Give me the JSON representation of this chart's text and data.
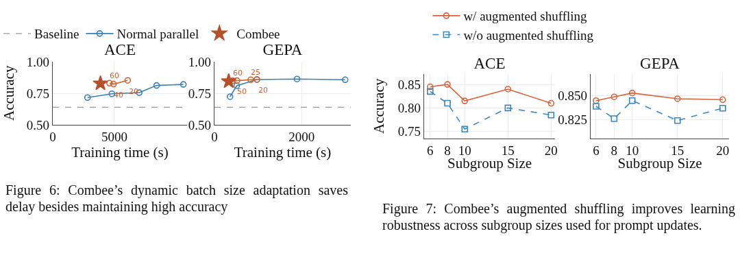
{
  "chart_data": [
    {
      "type": "line",
      "title": "ACE",
      "xlabel": "Training time (s)",
      "ylabel": "Accuracy",
      "xlim": [
        0,
        10900
      ],
      "xticks": [
        0,
        5000
      ],
      "ylim": [
        0.5,
        1.0
      ],
      "yticks": [
        {
          "value": 0.5,
          "label": "0.50"
        },
        {
          "value": 0.75,
          "label": "0.75"
        },
        {
          "value": 1.0,
          "label": "1.00"
        }
      ],
      "grid": true,
      "legend": "top",
      "marker": "circle",
      "annotations": [
        "Figure 6:  Combee’s dynamic batch size adaptation saves delay besides maintaining high accuracy",
        {
          "text": "60",
          "x": 4610,
          "y": 0.83
        },
        {
          "text": "40",
          "x": 4930,
          "y": 0.823
        },
        {
          "text": "20",
          "x": 6080,
          "y": 0.852
        }
      ],
      "ref_lines": [
        {
          "axis": "y",
          "value": 0.639,
          "label": "Baseline",
          "color": "#999999",
          "line_style": "dashed"
        }
      ],
      "series": [
        {
          "name": "Normal parallel",
          "color": "#3a7fb5",
          "x": [
            2820,
            4800,
            7020,
            8430,
            10600
          ],
          "values": [
            0.716,
            0.746,
            0.755,
            0.812,
            0.82
          ]
        },
        {
          "color": "#d2622f",
          "x": [
            4610,
            4930,
            6080
          ],
          "values": [
            0.83,
            0.823,
            0.852
          ]
        },
        {
          "name": "Combee",
          "type": "scatter",
          "marker": "star",
          "color": "#b5502c",
          "x": [
            3870
          ],
          "values": [
            0.828
          ]
        }
      ]
    },
    {
      "type": "line",
      "title": "GEPA",
      "xlabel": "Training time (s)",
      "xlim": [
        0,
        3130
      ],
      "xticks": [
        0,
        2000
      ],
      "ylim": [
        0.5,
        1.0
      ],
      "yticks": [
        {
          "value": 0.5,
          "label": "0.50"
        },
        {
          "value": 0.75,
          "label": "0.75"
        },
        {
          "value": 1.0,
          "label": "1.00"
        }
      ],
      "grid": true,
      "marker": "circle",
      "annotations": [
        {
          "text": "60",
          "x": 421,
          "y": 0.85
        },
        {
          "text": "50",
          "x": 516,
          "y": 0.85
        },
        {
          "text": "25",
          "x": 833,
          "y": 0.857
        },
        {
          "text": "20",
          "x": 974,
          "y": 0.859
        }
      ],
      "ref_lines": [
        {
          "axis": "y",
          "value": 0.639,
          "color": "#999999",
          "line_style": "dashed"
        }
      ],
      "series": [
        {
          "color": "#3a7fb5",
          "x": [
            358,
            511,
            974,
            1895,
            3000
          ],
          "values": [
            0.723,
            0.81,
            0.859,
            0.863,
            0.857
          ]
        },
        {
          "color": "#d2622f",
          "x": [
            421,
            516,
            833,
            974
          ],
          "values": [
            0.85,
            0.85,
            0.857,
            0.859
          ]
        },
        {
          "type": "scatter",
          "marker": "star",
          "color": "#b5502c",
          "x": [
            327
          ],
          "values": [
            0.845
          ]
        }
      ]
    },
    {
      "type": "line",
      "title": "ACE",
      "xlabel": "Subgroup Size",
      "ylabel": "Accuracy",
      "x": [
        6,
        8,
        10,
        15,
        20
      ],
      "xlim": [
        5.3,
        20.45
      ],
      "xticks": [
        6,
        8,
        10,
        15,
        20
      ],
      "ylim": [
        0.735,
        0.872
      ],
      "yticks": [
        {
          "value": 0.75,
          "label": "0.75"
        },
        {
          "value": 0.8,
          "label": "0.80"
        },
        {
          "value": 0.85,
          "label": "0.85"
        }
      ],
      "grid": true,
      "legend": "top",
      "annotations": [
        "Figure 7: Combee’s augmented shuffling improves learning robustness across subgroup sizes used for prompt updates."
      ],
      "series": [
        {
          "name": "w/ augmented shuffling",
          "color": "#d9623b",
          "marker": "circle",
          "line_style": "solid",
          "values": [
            0.845,
            0.85,
            0.815,
            0.84,
            0.81
          ]
        },
        {
          "name": "w/o augmented shuffling",
          "color": "#3c86c0",
          "marker": "square",
          "line_style": "dashed",
          "values": [
            0.835,
            0.81,
            0.755,
            0.8,
            0.785
          ]
        }
      ]
    },
    {
      "type": "line",
      "title": "GEPA",
      "xlabel": "Subgroup Size",
      "x": [
        6,
        8,
        10,
        15,
        20
      ],
      "xlim": [
        5.4,
        20.7
      ],
      "xticks": [
        6,
        8,
        10,
        15,
        20
      ],
      "ylim": [
        0.805,
        0.873
      ],
      "yticks": [
        {
          "value": 0.825,
          "label": "0.825"
        },
        {
          "value": 0.85,
          "label": "0.850"
        }
      ],
      "grid": true,
      "series": [
        {
          "color": "#d9623b",
          "marker": "circle",
          "line_style": "solid",
          "values": [
            0.845,
            0.849,
            0.853,
            0.847,
            0.846
          ]
        },
        {
          "color": "#3c86c0",
          "marker": "square",
          "line_style": "dashed",
          "values": [
            0.839,
            0.826,
            0.845,
            0.824,
            0.837
          ]
        }
      ]
    }
  ]
}
